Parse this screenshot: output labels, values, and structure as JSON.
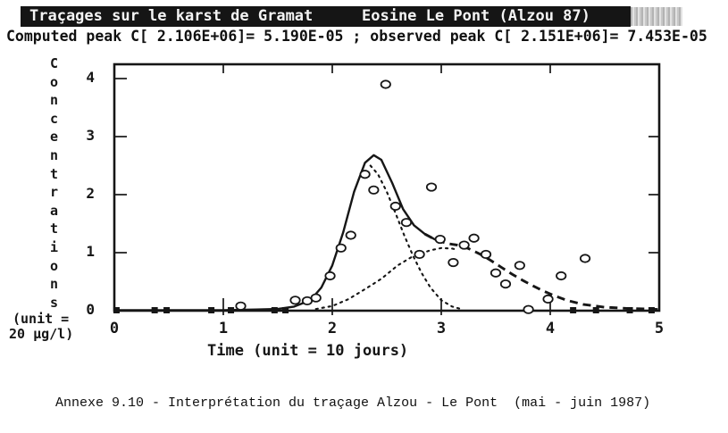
{
  "colors": {
    "ink": "#161616",
    "paper": "#ffffff",
    "titlebar_bg": "#151515",
    "titlebar_text": "#f4f4f4"
  },
  "header": {
    "title_left": "Traçages sur le karst de Gramat",
    "title_right": "Eosine Le Pont (Alzou 87)",
    "peak_line": "Computed peak C[ 2.106E+06]= 5.190E-05 ; observed peak C[ 2.151E+06]= 7.453E-05"
  },
  "chart": {
    "y_axis_label_vertical": "Concentrations",
    "y_axis_unit_line1": "(unit =",
    "y_axis_unit_line2": "20 µg/l)",
    "x_axis_label": "Time (unit = 10 jours)",
    "y_tick_labels": [
      "4",
      "3",
      "2",
      "1",
      "0"
    ],
    "x_tick_labels": [
      "0",
      "1",
      "2",
      "3",
      "4",
      "5"
    ]
  },
  "chart_data": {
    "type": "line",
    "title": "Traçages sur le karst de Gramat — Eosine Le Pont (Alzou 87)",
    "xlabel": "Time (unit = 10 jours)",
    "ylabel": "Concentrations (unit = 20 µg/l)",
    "xlim": [
      0,
      5
    ],
    "ylim": [
      0,
      4
    ],
    "x_ticks": [
      0,
      1,
      2,
      3,
      4,
      5
    ],
    "y_ticks": [
      0,
      1,
      2,
      3,
      4
    ],
    "grid": false,
    "legend": false,
    "computed_peak": "C[ 2.106E+06]= 5.190E-05",
    "observed_peak": "C[ 2.151E+06]= 7.453E-05",
    "series": [
      {
        "name": "computed-total-curve",
        "style": "solid",
        "dash_from_x": 2.9,
        "points": [
          [
            0,
            0.01
          ],
          [
            0.5,
            0.01
          ],
          [
            1.0,
            0.01
          ],
          [
            1.3,
            0.02
          ],
          [
            1.5,
            0.03
          ],
          [
            1.65,
            0.07
          ],
          [
            1.8,
            0.18
          ],
          [
            1.9,
            0.4
          ],
          [
            2.0,
            0.78
          ],
          [
            2.1,
            1.35
          ],
          [
            2.2,
            2.05
          ],
          [
            2.3,
            2.55
          ],
          [
            2.38,
            2.68
          ],
          [
            2.45,
            2.6
          ],
          [
            2.55,
            2.2
          ],
          [
            2.65,
            1.75
          ],
          [
            2.75,
            1.47
          ],
          [
            2.85,
            1.32
          ],
          [
            2.95,
            1.22
          ],
          [
            3.05,
            1.16
          ],
          [
            3.15,
            1.13
          ],
          [
            3.25,
            1.07
          ],
          [
            3.35,
            0.98
          ],
          [
            3.45,
            0.87
          ],
          [
            3.55,
            0.75
          ],
          [
            3.65,
            0.63
          ],
          [
            3.75,
            0.52
          ],
          [
            3.85,
            0.42
          ],
          [
            3.95,
            0.33
          ],
          [
            4.05,
            0.25
          ],
          [
            4.15,
            0.18
          ],
          [
            4.3,
            0.11
          ],
          [
            4.5,
            0.06
          ],
          [
            4.7,
            0.04
          ],
          [
            4.9,
            0.03
          ],
          [
            5.0,
            0.02
          ]
        ]
      },
      {
        "name": "component-1-curve",
        "style": "dotted",
        "points": [
          [
            2.35,
            2.5
          ],
          [
            2.42,
            2.35
          ],
          [
            2.5,
            2.05
          ],
          [
            2.58,
            1.68
          ],
          [
            2.66,
            1.3
          ],
          [
            2.74,
            0.95
          ],
          [
            2.82,
            0.65
          ],
          [
            2.9,
            0.4
          ],
          [
            3.0,
            0.18
          ],
          [
            3.1,
            0.07
          ],
          [
            3.2,
            0.02
          ]
        ]
      },
      {
        "name": "component-2-curve",
        "style": "dotted",
        "points": [
          [
            1.85,
            0.03
          ],
          [
            2.0,
            0.08
          ],
          [
            2.15,
            0.2
          ],
          [
            2.3,
            0.37
          ],
          [
            2.45,
            0.55
          ],
          [
            2.6,
            0.78
          ],
          [
            2.75,
            0.95
          ],
          [
            2.9,
            1.04
          ],
          [
            3.0,
            1.08
          ],
          [
            3.1,
            1.07
          ],
          [
            3.15,
            1.05
          ]
        ]
      },
      {
        "name": "observed-points",
        "style": "circles",
        "points": [
          [
            1.16,
            0.08
          ],
          [
            1.66,
            0.18
          ],
          [
            1.77,
            0.17
          ],
          [
            1.85,
            0.22
          ],
          [
            1.98,
            0.6
          ],
          [
            2.08,
            1.08
          ],
          [
            2.17,
            1.3
          ],
          [
            2.3,
            2.35
          ],
          [
            2.38,
            2.08
          ],
          [
            2.49,
            3.9
          ],
          [
            2.58,
            1.8
          ],
          [
            2.68,
            1.52
          ],
          [
            2.8,
            0.97
          ],
          [
            2.91,
            2.13
          ],
          [
            2.99,
            1.23
          ],
          [
            3.11,
            0.83
          ],
          [
            3.21,
            1.13
          ],
          [
            3.3,
            1.25
          ],
          [
            3.41,
            0.97
          ],
          [
            3.5,
            0.65
          ],
          [
            3.59,
            0.46
          ],
          [
            3.72,
            0.78
          ],
          [
            3.8,
            0.02
          ],
          [
            3.98,
            0.2
          ],
          [
            4.1,
            0.6
          ],
          [
            4.32,
            0.9
          ]
        ]
      },
      {
        "name": "observed-zero-markers",
        "style": "squares",
        "points": [
          [
            0.02,
            0
          ],
          [
            0.37,
            0
          ],
          [
            0.48,
            0
          ],
          [
            0.89,
            0
          ],
          [
            1.07,
            0
          ],
          [
            1.47,
            0
          ],
          [
            1.57,
            0
          ],
          [
            4.21,
            0
          ],
          [
            4.42,
            0
          ],
          [
            4.73,
            0
          ],
          [
            4.93,
            0
          ]
        ]
      }
    ]
  },
  "caption": {
    "text": "Annexe 9.10 - Interprétation du traçage Alzou - Le Pont  (mai - juin 1987)"
  }
}
